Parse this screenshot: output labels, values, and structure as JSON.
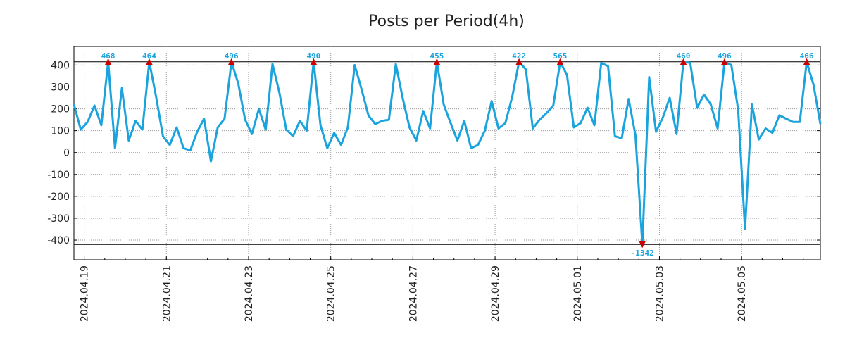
{
  "chart_data": {
    "type": "line",
    "title": "Posts per Period(4h)",
    "xlabel": "",
    "ylabel": "",
    "ylim": [
      -490,
      485
    ],
    "clip_range": [
      -420,
      415
    ],
    "grid": true,
    "y_ticks": [
      400,
      300,
      200,
      100,
      0,
      -100,
      -200,
      -300,
      -400
    ],
    "x_ticks": [
      {
        "label": "2024.04.19",
        "index": 1.5
      },
      {
        "label": "2024.04.21",
        "index": 13.5
      },
      {
        "label": "2024.04.23",
        "index": 25.5
      },
      {
        "label": "2024.04.25",
        "index": 37.5
      },
      {
        "label": "2024.04.27",
        "index": 49.5
      },
      {
        "label": "2024.04.29",
        "index": 61.5
      },
      {
        "label": "2024.05.01",
        "index": 73.5
      },
      {
        "label": "2024.05.03",
        "index": 85.5
      },
      {
        "label": "2024.05.05",
        "index": 97.5
      }
    ],
    "series": [
      {
        "name": "posts",
        "color": "#1aa3dc",
        "values": [
          220,
          105,
          140,
          215,
          125,
          468,
          20,
          295,
          55,
          145,
          105,
          464,
          255,
          75,
          35,
          115,
          20,
          10,
          95,
          155,
          -40,
          115,
          155,
          496,
          315,
          150,
          85,
          200,
          105,
          405,
          275,
          105,
          75,
          145,
          100,
          490,
          125,
          20,
          90,
          35,
          115,
          400,
          290,
          170,
          130,
          145,
          150,
          405,
          250,
          115,
          55,
          190,
          110,
          455,
          220,
          135,
          55,
          145,
          20,
          35,
          100,
          235,
          110,
          135,
          255,
          422,
          380,
          110,
          150,
          180,
          215,
          565,
          355,
          115,
          135,
          205,
          125,
          410,
          395,
          75,
          65,
          245,
          80,
          -1342,
          345,
          95,
          160,
          250,
          85,
          460,
          410,
          205,
          265,
          220,
          110,
          496,
          400,
          195,
          -350,
          220,
          60,
          110,
          90,
          170,
          155,
          140,
          140,
          466,
          310,
          130
        ]
      }
    ],
    "markers": {
      "high": {
        "color": "#cc0000",
        "indices": [
          5,
          11,
          23,
          35,
          53,
          65,
          71,
          89,
          95,
          107
        ],
        "labels": [
          "468",
          "464",
          "496",
          "490",
          "455",
          "422",
          "565",
          "460",
          "496",
          "466"
        ]
      },
      "low": {
        "color": "#cc0000",
        "indices": [
          83
        ],
        "labels": [
          "-1342"
        ]
      }
    }
  }
}
